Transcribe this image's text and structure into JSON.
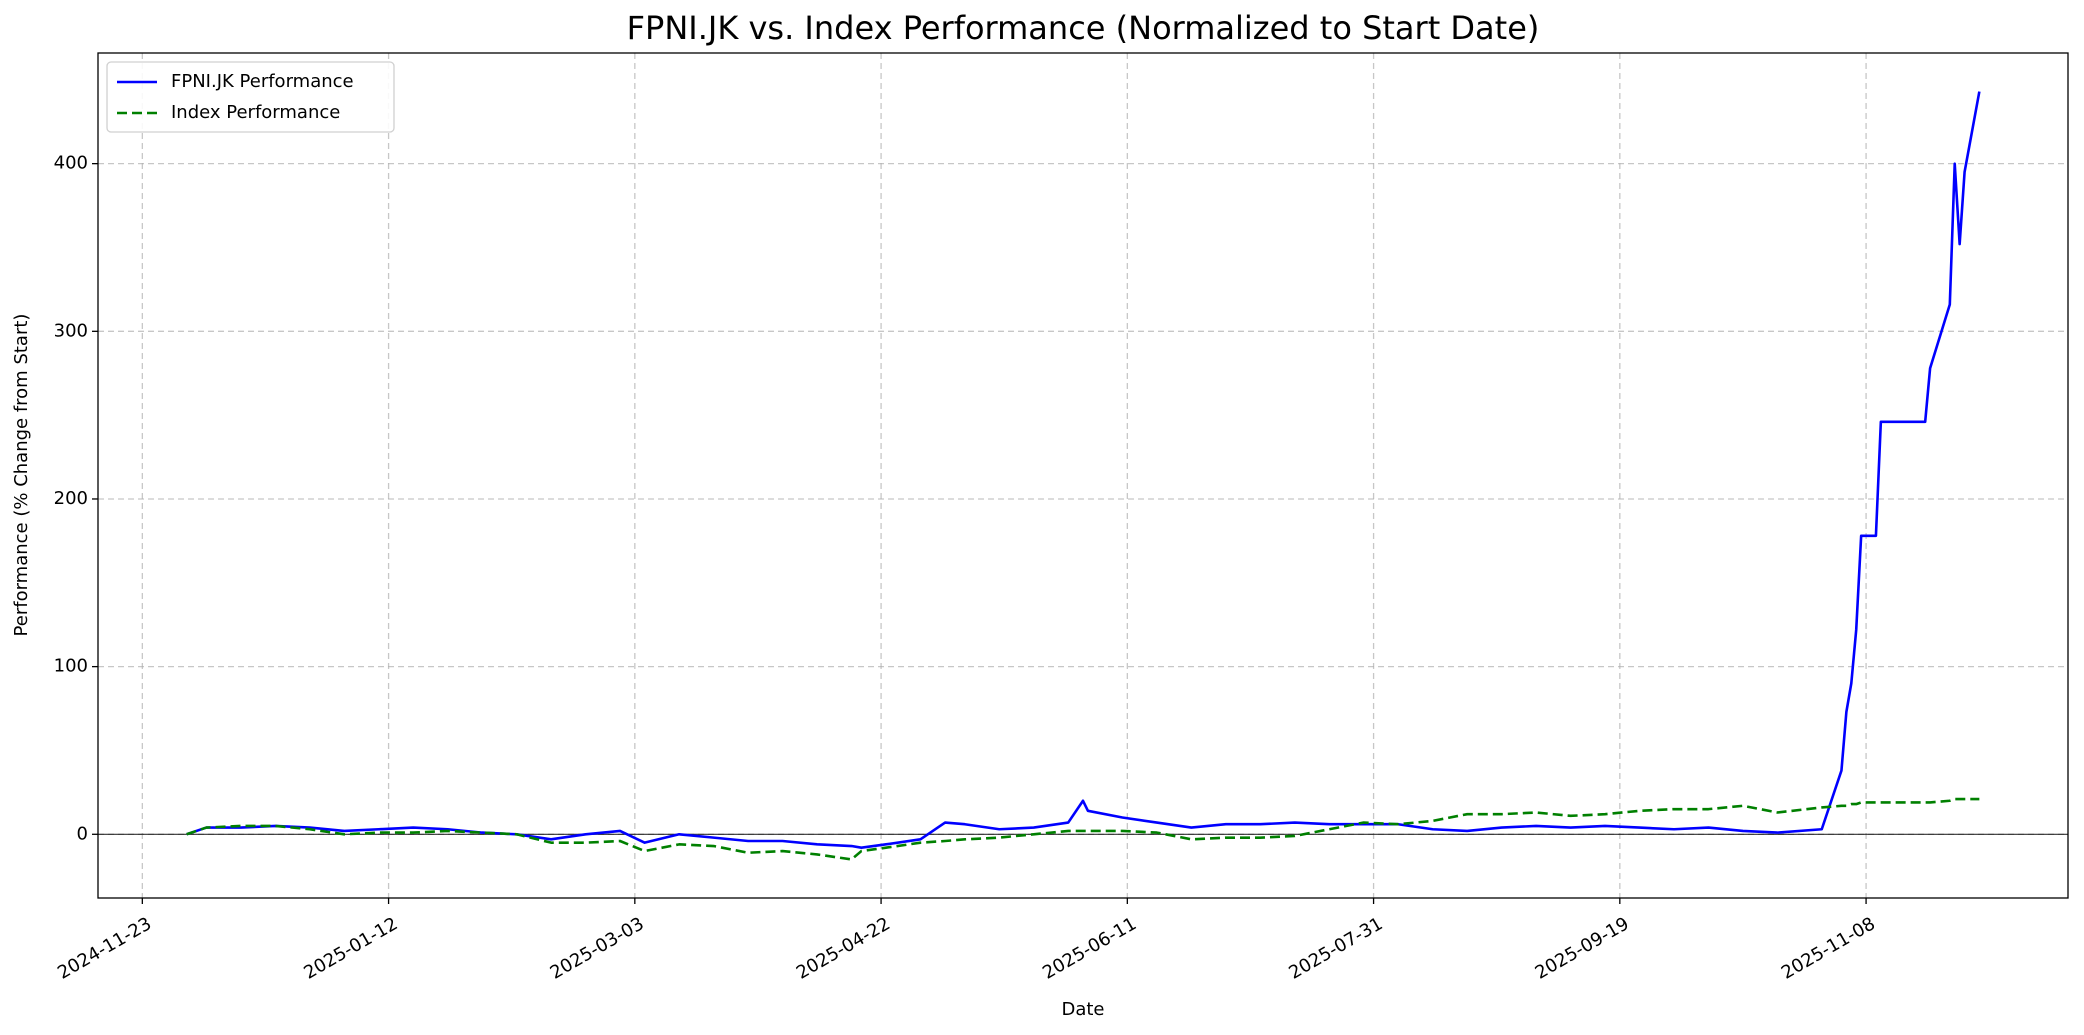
{
  "chart_data": {
    "type": "line",
    "title": "FPNI.JK vs. Index Performance (Normalized to Start Date)",
    "x_label": "Date",
    "y_label": "Performance (% Change from Start)",
    "x": [
      "2024-12-02",
      "2024-12-06",
      "2024-12-13",
      "2024-12-20",
      "2024-12-27",
      "2025-01-03",
      "2025-01-10",
      "2025-01-17",
      "2025-01-24",
      "2025-01-31",
      "2025-02-07",
      "2025-02-14",
      "2025-02-21",
      "2025-02-28",
      "2025-03-05",
      "2025-03-12",
      "2025-03-19",
      "2025-03-26",
      "2025-04-02",
      "2025-04-09",
      "2025-04-16",
      "2025-04-18",
      "2025-04-23",
      "2025-04-30",
      "2025-05-05",
      "2025-05-09",
      "2025-05-16",
      "2025-05-23",
      "2025-05-30",
      "2025-06-02",
      "2025-06-03",
      "2025-06-10",
      "2025-06-17",
      "2025-06-24",
      "2025-07-01",
      "2025-07-08",
      "2025-07-15",
      "2025-07-22",
      "2025-07-29",
      "2025-08-05",
      "2025-08-12",
      "2025-08-19",
      "2025-08-26",
      "2025-09-02",
      "2025-09-09",
      "2025-09-16",
      "2025-09-23",
      "2025-09-30",
      "2025-10-07",
      "2025-10-14",
      "2025-10-21",
      "2025-10-30",
      "2025-11-03",
      "2025-11-04",
      "2025-11-05",
      "2025-11-06",
      "2025-11-07",
      "2025-11-10",
      "2025-11-11",
      "2025-11-20",
      "2025-11-21",
      "2025-11-25",
      "2025-11-26",
      "2025-11-27",
      "2025-11-28",
      "2025-12-01"
    ],
    "series": [
      {
        "name": "FPNI.JK Performance",
        "color": "#0000ff",
        "linestyle": "solid",
        "values": [
          0,
          4,
          4,
          5,
          4,
          2,
          3,
          4,
          3,
          1,
          0,
          -3,
          0,
          2,
          -5,
          0,
          -2,
          -4,
          -4,
          -6,
          -7,
          -8,
          -6,
          -3,
          7,
          6,
          3,
          4,
          7,
          20,
          14,
          10,
          7,
          4,
          6,
          6,
          7,
          6,
          6,
          6,
          3,
          2,
          4,
          5,
          4,
          5,
          4,
          3,
          4,
          2,
          1,
          3,
          38,
          73,
          90,
          122,
          178,
          178,
          246,
          246,
          278,
          316,
          400,
          352,
          395,
          443
        ]
      },
      {
        "name": "Index Performance",
        "color": "#008000",
        "linestyle": "dashed",
        "values": [
          0,
          4,
          5,
          5,
          3,
          0,
          1,
          1,
          2,
          1,
          0,
          -5,
          -5,
          -4,
          -10,
          -6,
          -7,
          -11,
          -10,
          -12,
          -15,
          -10,
          -8,
          -5,
          -4,
          -3,
          -2,
          0,
          2,
          2,
          2,
          2,
          1,
          -3,
          -2,
          -2,
          -1,
          3,
          7,
          6,
          8,
          12,
          12,
          13,
          11,
          12,
          14,
          15,
          15,
          17,
          13,
          16,
          17,
          17,
          18,
          18,
          19,
          19,
          19,
          19,
          19,
          20,
          21,
          21,
          21,
          21
        ]
      }
    ],
    "reference_line": 0,
    "xlim": [
      "2024-11-14",
      "2025-12-19"
    ],
    "xticks": [
      "2024-11-23",
      "2025-01-12",
      "2025-03-03",
      "2025-04-22",
      "2025-06-11",
      "2025-07-31",
      "2025-09-19",
      "2025-11-08"
    ],
    "ylim": [
      -38,
      466
    ],
    "yticks": [
      0,
      100,
      200,
      300,
      400
    ],
    "grid": true,
    "legend": "upper left"
  }
}
